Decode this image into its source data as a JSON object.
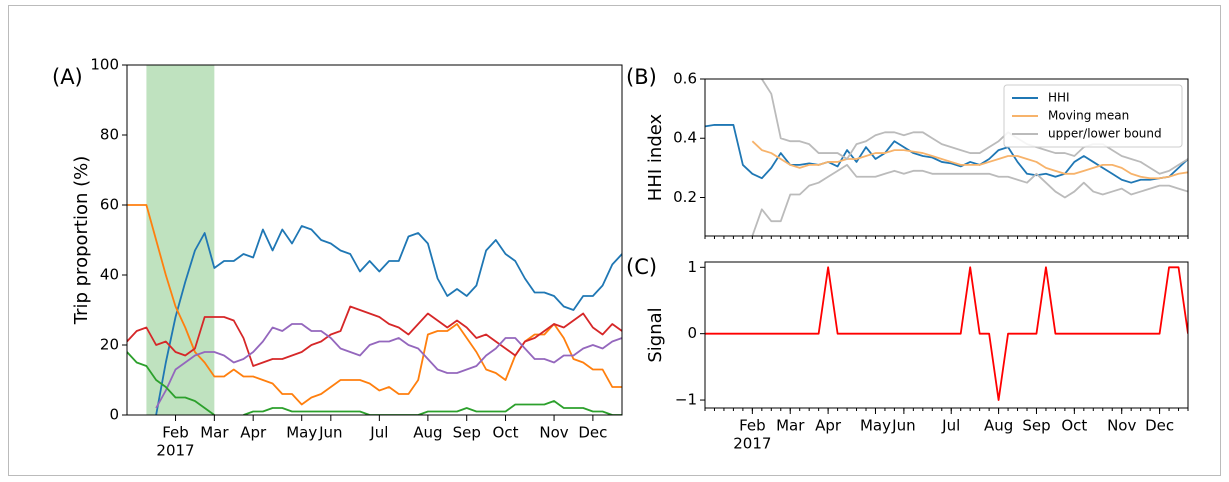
{
  "chart_data": [
    {
      "type": "line",
      "panel_label": "(A)",
      "ylabel": "Trip proportion (%)",
      "year_label": "2017",
      "categories": [
        null,
        null,
        null,
        null,
        null,
        "Feb",
        null,
        null,
        null,
        "Mar",
        null,
        null,
        null,
        "Apr",
        null,
        null,
        null,
        null,
        "May",
        null,
        null,
        "Jun",
        null,
        null,
        null,
        null,
        "Jul",
        null,
        null,
        null,
        null,
        "Aug",
        null,
        null,
        null,
        "Sep",
        null,
        null,
        null,
        "Oct",
        null,
        null,
        null,
        null,
        "Nov",
        null,
        null,
        null,
        "Dec",
        null,
        null,
        null
      ],
      "ylim": [
        0,
        100
      ],
      "yticks": [
        0,
        20,
        40,
        60,
        80,
        100
      ],
      "shade": {
        "from": 2,
        "to": 9,
        "color": "#2ca02c"
      },
      "minor_ticks": false,
      "series": [
        {
          "color": "#1f77b4",
          "values": [
            null,
            null,
            null,
            0,
            15,
            28,
            38,
            47,
            52,
            42,
            44,
            44,
            46,
            45,
            53,
            47,
            53,
            49,
            54,
            53,
            50,
            49,
            47,
            46,
            41,
            44,
            41,
            44,
            44,
            51,
            52,
            49,
            39,
            34,
            36,
            34,
            37,
            47,
            50,
            46,
            44,
            39,
            35,
            35,
            34,
            31,
            30,
            34,
            34,
            37,
            43,
            46
          ]
        },
        {
          "color": "#ff7f0e",
          "values": [
            60,
            60,
            60,
            50,
            40,
            31,
            25,
            18,
            15,
            11,
            11,
            13,
            11,
            11,
            10,
            9,
            6,
            6,
            3,
            5,
            6,
            8,
            10,
            10,
            10,
            9,
            7,
            8,
            6,
            6,
            10,
            23,
            24,
            24,
            26,
            22,
            18,
            13,
            12,
            10,
            17,
            21,
            23,
            23,
            26,
            22,
            16,
            15,
            13,
            13,
            8,
            8
          ]
        },
        {
          "color": "#d62728",
          "values": [
            21,
            24,
            25,
            20,
            21,
            18,
            17,
            19,
            28,
            28,
            28,
            27,
            22,
            14,
            15,
            16,
            16,
            17,
            18,
            20,
            21,
            23,
            24,
            31,
            30,
            29,
            28,
            26,
            25,
            23,
            26,
            29,
            27,
            25,
            27,
            25,
            22,
            23,
            21,
            19,
            17,
            21,
            22,
            24,
            26,
            25,
            27,
            29,
            25,
            23,
            26,
            24
          ]
        },
        {
          "color": "#9467bd",
          "values": [
            null,
            null,
            null,
            2,
            7,
            13,
            15,
            17,
            18,
            18,
            17,
            15,
            16,
            18,
            21,
            25,
            24,
            26,
            26,
            24,
            24,
            22,
            19,
            18,
            17,
            20,
            21,
            21,
            22,
            20,
            19,
            16,
            13,
            12,
            12,
            13,
            14,
            17,
            19,
            22,
            22,
            19,
            16,
            16,
            15,
            17,
            17,
            19,
            20,
            19,
            21,
            22
          ]
        },
        {
          "color": "#2ca02c",
          "values": [
            18,
            15,
            14,
            10,
            8,
            5,
            5,
            4,
            2,
            0,
            null,
            null,
            0,
            1,
            1,
            2,
            2,
            1,
            1,
            1,
            1,
            1,
            1,
            1,
            1,
            0,
            0,
            0,
            0,
            0,
            0,
            1,
            1,
            1,
            1,
            2,
            1,
            1,
            1,
            1,
            3,
            3,
            3,
            3,
            4,
            2,
            2,
            2,
            1,
            1,
            0,
            0
          ]
        }
      ]
    },
    {
      "type": "line",
      "panel_label": "(B)",
      "ylabel": "HHI index",
      "categories": [
        null,
        null,
        null,
        null,
        null,
        null,
        null,
        null,
        null,
        null,
        null,
        null,
        null,
        null,
        null,
        null,
        null,
        null,
        null,
        null,
        null,
        null,
        null,
        null,
        null,
        null,
        null,
        null,
        null,
        null,
        null,
        null,
        null,
        null,
        null,
        null,
        null,
        null,
        null,
        null,
        null,
        null,
        null,
        null,
        null,
        null,
        null,
        null,
        null,
        null,
        null,
        null
      ],
      "ylim": [
        0.07,
        0.6
      ],
      "yticks": [
        0.2,
        0.4,
        0.6
      ],
      "minor_ticks": true,
      "legend": "upper right",
      "series": [
        {
          "name": "HHI",
          "color": "#1f77b4",
          "values": [
            0.44,
            0.445,
            0.445,
            0.445,
            0.31,
            0.28,
            0.265,
            0.3,
            0.35,
            0.31,
            0.31,
            0.315,
            0.31,
            0.32,
            0.305,
            0.36,
            0.32,
            0.37,
            0.33,
            0.35,
            0.39,
            0.37,
            0.35,
            0.34,
            0.335,
            0.32,
            0.315,
            0.305,
            0.32,
            0.31,
            0.33,
            0.36,
            0.37,
            0.32,
            0.28,
            0.275,
            0.28,
            0.27,
            0.28,
            0.32,
            0.34,
            0.32,
            0.3,
            0.28,
            0.26,
            0.25,
            0.26,
            0.26,
            0.265,
            0.27,
            0.3,
            0.33
          ]
        },
        {
          "name": "Moving mean",
          "color": "#f7b36b",
          "values": [
            null,
            null,
            null,
            null,
            null,
            0.39,
            0.36,
            0.35,
            0.33,
            0.31,
            0.3,
            0.31,
            0.31,
            0.32,
            0.32,
            0.33,
            0.33,
            0.34,
            0.35,
            0.35,
            0.36,
            0.36,
            0.355,
            0.35,
            0.34,
            0.33,
            0.32,
            0.31,
            0.31,
            0.31,
            0.32,
            0.33,
            0.34,
            0.34,
            0.33,
            0.32,
            0.3,
            0.29,
            0.28,
            0.28,
            0.29,
            0.3,
            0.31,
            0.31,
            0.3,
            0.28,
            0.27,
            0.265,
            0.265,
            0.27,
            0.28,
            0.285
          ]
        },
        {
          "name": "upper/lower bound",
          "color": "#bbbbbb",
          "values": [
            null,
            null,
            null,
            null,
            null,
            0.62,
            0.6,
            0.55,
            0.4,
            0.39,
            0.39,
            0.38,
            0.35,
            0.35,
            0.35,
            0.33,
            0.38,
            0.39,
            0.41,
            0.42,
            0.42,
            0.41,
            0.42,
            0.42,
            0.4,
            0.38,
            0.37,
            0.36,
            0.35,
            0.35,
            0.37,
            0.39,
            0.42,
            0.4,
            0.38,
            0.37,
            0.36,
            0.35,
            0.35,
            0.34,
            0.37,
            0.38,
            0.38,
            0.36,
            0.34,
            0.33,
            0.32,
            0.3,
            0.28,
            0.29,
            0.31,
            0.33
          ],
          "lower": [
            null,
            null,
            null,
            null,
            null,
            0.07,
            0.16,
            0.12,
            0.12,
            0.21,
            0.21,
            0.24,
            0.25,
            0.27,
            0.29,
            0.31,
            0.27,
            0.27,
            0.27,
            0.28,
            0.29,
            0.28,
            0.29,
            0.29,
            0.28,
            0.28,
            0.28,
            0.28,
            0.28,
            0.28,
            0.28,
            0.27,
            0.27,
            0.26,
            0.25,
            0.28,
            0.25,
            0.22,
            0.2,
            0.22,
            0.25,
            0.22,
            0.21,
            0.22,
            0.23,
            0.21,
            0.22,
            0.23,
            0.24,
            0.24,
            0.23,
            0.22
          ]
        }
      ]
    },
    {
      "type": "line",
      "panel_label": "(C)",
      "ylabel": "Signal",
      "year_label": "2017",
      "categories": [
        null,
        null,
        null,
        null,
        null,
        "Feb",
        null,
        null,
        null,
        "Mar",
        null,
        null,
        null,
        "Apr",
        null,
        null,
        null,
        null,
        "May",
        null,
        null,
        "Jun",
        null,
        null,
        null,
        null,
        "Jul",
        null,
        null,
        null,
        null,
        "Aug",
        null,
        null,
        null,
        "Sep",
        null,
        null,
        null,
        "Oct",
        null,
        null,
        null,
        null,
        "Nov",
        null,
        null,
        null,
        "Dec",
        null,
        null,
        null
      ],
      "ylim": [
        -1.12,
        1.08
      ],
      "yticks": [
        {
          "value": -1,
          "label": "−1"
        },
        0,
        1
      ],
      "minor_ticks": true,
      "series": [
        {
          "color": "#ff0000",
          "values": [
            0,
            0,
            0,
            0,
            0,
            0,
            0,
            0,
            0,
            0,
            0,
            0,
            0,
            1,
            0,
            0,
            0,
            0,
            0,
            0,
            0,
            0,
            0,
            0,
            0,
            0,
            0,
            0,
            1,
            0,
            0,
            -1,
            0,
            0,
            0,
            0,
            1,
            0,
            0,
            0,
            0,
            0,
            0,
            0,
            0,
            0,
            0,
            0,
            0,
            1,
            1,
            0
          ]
        }
      ]
    }
  ]
}
